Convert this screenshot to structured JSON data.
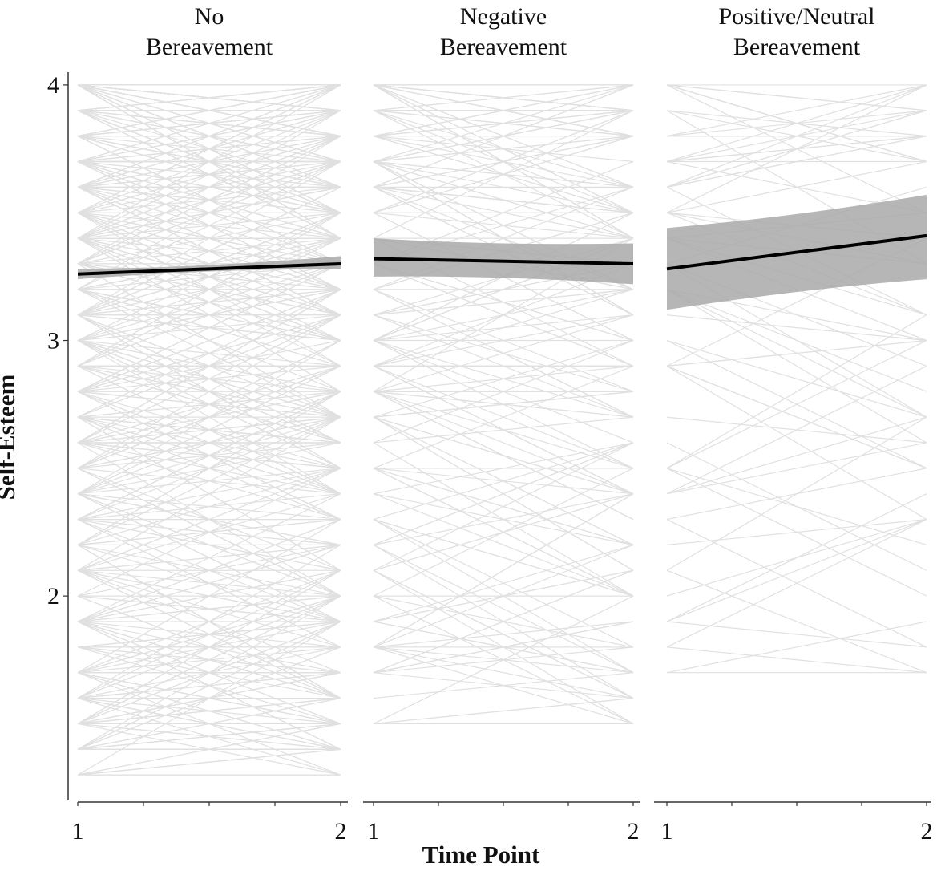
{
  "chart_data": {
    "type": "line",
    "xlabel": "Time Point",
    "ylabel": "Self-Esteem",
    "ylim": [
      1.2,
      4.05
    ],
    "yticks": [
      2,
      3,
      4
    ],
    "xticks": [
      1,
      2
    ],
    "colors": {
      "individual": "#e0e0e0",
      "band": "#a9a9a9",
      "fit": "#000000"
    },
    "panels": [
      {
        "title": [
          "No",
          "Bereavement"
        ],
        "fit": {
          "x": [
            1,
            2
          ],
          "y": [
            3.26,
            3.3
          ]
        },
        "band_lower": [
          3.24,
          3.28
        ],
        "band_upper": [
          3.28,
          3.33
        ],
        "individual_lines": {
          "count": 600,
          "y_range": [
            1.3,
            4.0
          ],
          "seed": 11,
          "density": "high"
        }
      },
      {
        "title": [
          "Negative",
          "Bereavement"
        ],
        "fit": {
          "x": [
            1,
            2
          ],
          "y": [
            3.32,
            3.3
          ]
        },
        "band_lower": [
          3.25,
          3.22
        ],
        "band_upper": [
          3.4,
          3.38
        ],
        "individual_lines": {
          "count": 220,
          "y_range": [
            1.45,
            4.0
          ],
          "seed": 23,
          "density": "medium"
        }
      },
      {
        "title": [
          "Positive/Neutral",
          "Bereavement"
        ],
        "fit": {
          "x": [
            1,
            2
          ],
          "y": [
            3.28,
            3.41
          ]
        },
        "band_lower": [
          3.12,
          3.24
        ],
        "band_upper": [
          3.44,
          3.57
        ],
        "individual_lines": {
          "count": 75,
          "y_range": [
            1.65,
            4.0
          ],
          "seed": 37,
          "density": "low"
        }
      }
    ]
  }
}
